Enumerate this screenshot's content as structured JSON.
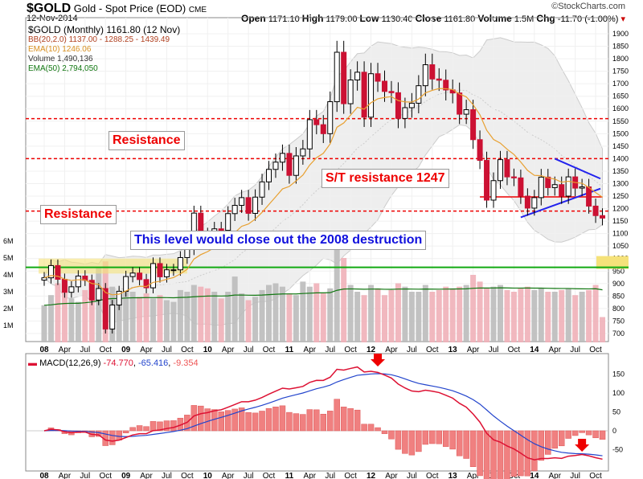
{
  "header": {
    "symbol": "$GOLD",
    "name": "Gold - Spot Price (EOD)",
    "exchange": "CME",
    "date": "12-Nov-2014",
    "brand": "©StockCharts.com",
    "open_label": "Open",
    "open": "1171.10",
    "high_label": "High",
    "high": "1179.00",
    "low_label": "Low",
    "low": "1130.40",
    "close_label": "Close",
    "close": "1161.80",
    "volume_label": "Volume",
    "volume": "1.5M",
    "chg_label": "Chg",
    "chg": "-11.70 (-1.00%)"
  },
  "legend": {
    "price": "$GOLD (Monthly) 1161.80 (12 Nov)",
    "bb": "BB(20,2.0) 1137.00 - 1288.25 - 1439.49",
    "ema10": "EMA(10) 1246.06",
    "volume": "Volume 1,490,136",
    "ema50": "EMA(50) 2,794,050",
    "macd_label": "MACD(12,26,9)",
    "macd": "-74.770",
    "signal": "-65.416",
    "hist": "-9.354"
  },
  "annotations": {
    "resistance_upper": "Resistance",
    "resistance_lower": "Resistance",
    "st_resistance": "S/T resistance 1247",
    "destruction": "This level would close out the 2008 destruction"
  },
  "colors": {
    "up": "#ffffff",
    "down": "#cc1133",
    "bb_fill": "#eeeeee",
    "ema10": "#e8a030",
    "ema50": "#117711",
    "macd": "#dd1133",
    "signal": "#2244cc",
    "hist": "#f08080",
    "resistance": "#ee0000",
    "support": "#11aa11",
    "triangle": "#2222ee",
    "highlight": "#f5e27a"
  },
  "chart_data": {
    "type": "candlestick",
    "interval": "monthly",
    "start": "2008-01",
    "closes": [
      923,
      972,
      917,
      865,
      887,
      930,
      913,
      834,
      880,
      718,
      814,
      869,
      928,
      942,
      916,
      883,
      980,
      927,
      955,
      955,
      1004,
      1040,
      1182,
      1096,
      1081,
      1119,
      1113,
      1180,
      1213,
      1244,
      1181,
      1246,
      1307,
      1357,
      1386,
      1421,
      1333,
      1411,
      1439,
      1556,
      1536,
      1500,
      1628,
      1826,
      1620,
      1715,
      1746,
      1566,
      1740,
      1710,
      1669,
      1664,
      1561,
      1604,
      1622,
      1692,
      1776,
      1719,
      1714,
      1675,
      1663,
      1578,
      1596,
      1476,
      1393,
      1234,
      1312,
      1396,
      1327,
      1323,
      1250,
      1202,
      1244,
      1326,
      1284,
      1296,
      1250,
      1327,
      1282,
      1287,
      1210,
      1172,
      1162
    ],
    "volume_millions": [
      2.2,
      2.8,
      3.5,
      3.0,
      2.6,
      2.4,
      3.1,
      3.6,
      4.4,
      4.8,
      3.3,
      2.8,
      3.2,
      3.0,
      2.7,
      2.9,
      2.6,
      2.8,
      2.5,
      2.4,
      3.1,
      3.0,
      3.4,
      3.3,
      3.2,
      3.0,
      2.6,
      3.0,
      3.9,
      2.9,
      2.5,
      2.7,
      3.1,
      3.4,
      3.5,
      3.3,
      2.9,
      2.8,
      3.6,
      3.3,
      3.5,
      2.9,
      3.2,
      6.5,
      5.0,
      3.4,
      3.0,
      2.8,
      3.4,
      3.2,
      2.8,
      3.1,
      3.5,
      3.3,
      3.0,
      3.0,
      3.4,
      3.0,
      3.1,
      3.3,
      3.2,
      3.3,
      3.4,
      4.0,
      3.6,
      3.2,
      3.3,
      3.4,
      3.1,
      3.0,
      3.2,
      3.3,
      3.1,
      3.2,
      3.0,
      3.0,
      3.1,
      3.2,
      2.8,
      3.0,
      3.1,
      3.4,
      1.5
    ],
    "x_tick_labels": [
      "08",
      "Apr",
      "Jul",
      "Oct",
      "09",
      "Apr",
      "Jul",
      "Oct",
      "10",
      "Apr",
      "Jul",
      "Oct",
      "11",
      "Apr",
      "Jul",
      "Oct",
      "12",
      "Apr",
      "Jul",
      "Oct",
      "13",
      "Apr",
      "Jul",
      "Oct",
      "14",
      "Apr",
      "Jul",
      "Oct"
    ],
    "price_axis": {
      "min": 700,
      "max": 1900,
      "step": 50
    },
    "volume_axis_labels": [
      "1M",
      "2M",
      "3M",
      "4M",
      "5M",
      "6M"
    ],
    "macd_axis_labels": [
      "150",
      "100",
      "50",
      "0",
      "-50"
    ],
    "levels": {
      "resistance": [
        1560,
        1400,
        1190
      ],
      "st_resistance": 1247,
      "support_2008": 965
    }
  }
}
